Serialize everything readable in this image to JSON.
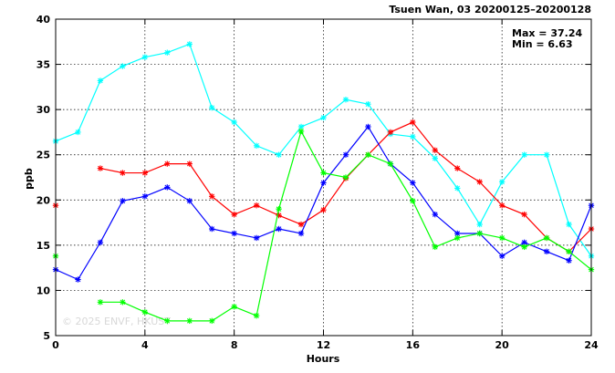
{
  "chart_data": {
    "type": "line",
    "title": "Tsuen Wan, 03 20200125–20200128",
    "xlabel": "Hours",
    "ylabel": "ppb",
    "xlim": [
      0,
      24
    ],
    "ylim": [
      5,
      40
    ],
    "xticks": [
      0,
      4,
      8,
      12,
      16,
      20,
      24
    ],
    "yticks": [
      5,
      10,
      15,
      20,
      25,
      30,
      35,
      40
    ],
    "grid": true,
    "legend": "none",
    "max_label": "Max = 37.24",
    "min_label": "Min =  6.63",
    "watermark": "© 2025  ENVF, HKUST",
    "x": [
      0,
      1,
      2,
      3,
      4,
      5,
      6,
      7,
      8,
      9,
      10,
      11,
      12,
      13,
      14,
      15,
      16,
      17,
      18,
      19,
      20,
      21,
      22,
      23,
      24
    ],
    "series": [
      {
        "color": "#00ffff",
        "values": [
          26.5,
          27.5,
          33.2,
          34.8,
          35.8,
          36.3,
          37.24,
          30.2,
          28.6,
          26.0,
          25.0,
          28.1,
          29.1,
          31.1,
          30.6,
          27.3,
          27.0,
          24.6,
          21.3,
          17.3,
          22.0,
          25.0,
          25.0,
          17.3,
          13.8
        ]
      },
      {
        "color": "#ff0000",
        "values": [
          19.4,
          null,
          23.5,
          23.0,
          23.0,
          24.0,
          24.0,
          20.4,
          18.4,
          19.4,
          18.3,
          17.3,
          18.9,
          22.4,
          25.0,
          27.5,
          28.6,
          25.5,
          23.5,
          22.0,
          19.4,
          18.4,
          15.8,
          14.3,
          16.8
        ]
      },
      {
        "color": "#0000ff",
        "values": [
          12.3,
          11.2,
          15.3,
          19.9,
          20.4,
          21.4,
          19.9,
          16.8,
          16.3,
          15.8,
          16.8,
          16.3,
          21.9,
          25.0,
          28.1,
          24.0,
          21.9,
          18.4,
          16.3,
          16.3,
          13.8,
          15.3,
          14.3,
          13.3,
          19.4
        ]
      },
      {
        "color": "#00ff00",
        "values": [
          13.8,
          null,
          8.7,
          8.7,
          7.6,
          6.63,
          6.63,
          6.63,
          8.2,
          7.2,
          19.0,
          27.6,
          23.0,
          22.5,
          25.0,
          24.0,
          19.9,
          14.8,
          15.8,
          16.3,
          15.8,
          14.8,
          15.8,
          14.3,
          12.3
        ]
      }
    ]
  }
}
